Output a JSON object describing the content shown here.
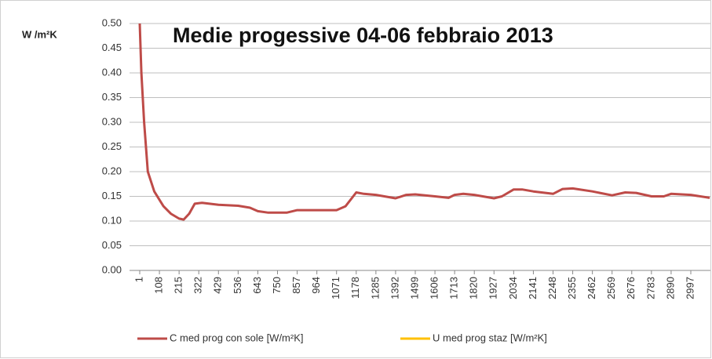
{
  "chart_data": {
    "type": "line",
    "title": "Medie progessive 04-06 febbraio 2013",
    "y_label": "W /m²K",
    "x": [
      1,
      10,
      25,
      45,
      80,
      130,
      170,
      215,
      240,
      270,
      300,
      340,
      429,
      536,
      600,
      643,
      700,
      800,
      857,
      964,
      1071,
      1120,
      1178,
      1220,
      1285,
      1392,
      1450,
      1499,
      1606,
      1680,
      1713,
      1760,
      1820,
      1927,
      1970,
      2034,
      2080,
      2141,
      2248,
      2300,
      2355,
      2462,
      2569,
      2640,
      2700,
      2783,
      2850,
      2890,
      2997,
      3100
    ],
    "series": [
      {
        "name": "C med prog con sole [W/m²K]",
        "color": "#be4b48",
        "values": [
          0.5,
          0.4,
          0.3,
          0.2,
          0.16,
          0.13,
          0.115,
          0.105,
          0.103,
          0.115,
          0.135,
          0.137,
          0.133,
          0.131,
          0.127,
          0.12,
          0.117,
          0.117,
          0.122,
          0.122,
          0.122,
          0.13,
          0.158,
          0.155,
          0.153,
          0.146,
          0.153,
          0.154,
          0.15,
          0.147,
          0.153,
          0.155,
          0.153,
          0.146,
          0.15,
          0.164,
          0.164,
          0.16,
          0.155,
          0.165,
          0.166,
          0.16,
          0.152,
          0.158,
          0.157,
          0.15,
          0.15,
          0.155,
          0.153,
          0.147
        ]
      },
      {
        "name": "U med prog staz [W/m²K]",
        "color": "#ffc000",
        "values": [
          null,
          null,
          null,
          null,
          null,
          null,
          null,
          null,
          null,
          null,
          null,
          null,
          null,
          null,
          null,
          null,
          null,
          null,
          null,
          null,
          null,
          null,
          null,
          null,
          null,
          null,
          null,
          null,
          null,
          null,
          null,
          null,
          null,
          null,
          null,
          null,
          null,
          null,
          null,
          null,
          null,
          null,
          null,
          null,
          null,
          null,
          null,
          null,
          null,
          null
        ]
      }
    ],
    "xlim": [
      1,
      3100
    ],
    "xticks": [
      1,
      108,
      215,
      322,
      429,
      536,
      643,
      750,
      857,
      964,
      1071,
      1178,
      1285,
      1392,
      1499,
      1606,
      1713,
      1820,
      1927,
      2034,
      2141,
      2248,
      2355,
      2462,
      2569,
      2676,
      2783,
      2890,
      2997
    ],
    "ylim": [
      0,
      0.5
    ],
    "yticks": [
      {
        "value": 0,
        "label": "0.00"
      },
      {
        "value": 0.05,
        "label": "0.05"
      },
      {
        "value": 0.1,
        "label": "0.10"
      },
      {
        "value": 0.15,
        "label": "0.15"
      },
      {
        "value": 0.2,
        "label": "0.20"
      },
      {
        "value": 0.25,
        "label": "0.25"
      },
      {
        "value": 0.3,
        "label": "0.30"
      },
      {
        "value": 0.35,
        "label": "0.35"
      },
      {
        "value": 0.4,
        "label": "0.40"
      },
      {
        "value": 0.45,
        "label": "0.45"
      },
      {
        "value": 0.5,
        "label": "0.50"
      }
    ],
    "grid": true,
    "legend": "bottom"
  }
}
